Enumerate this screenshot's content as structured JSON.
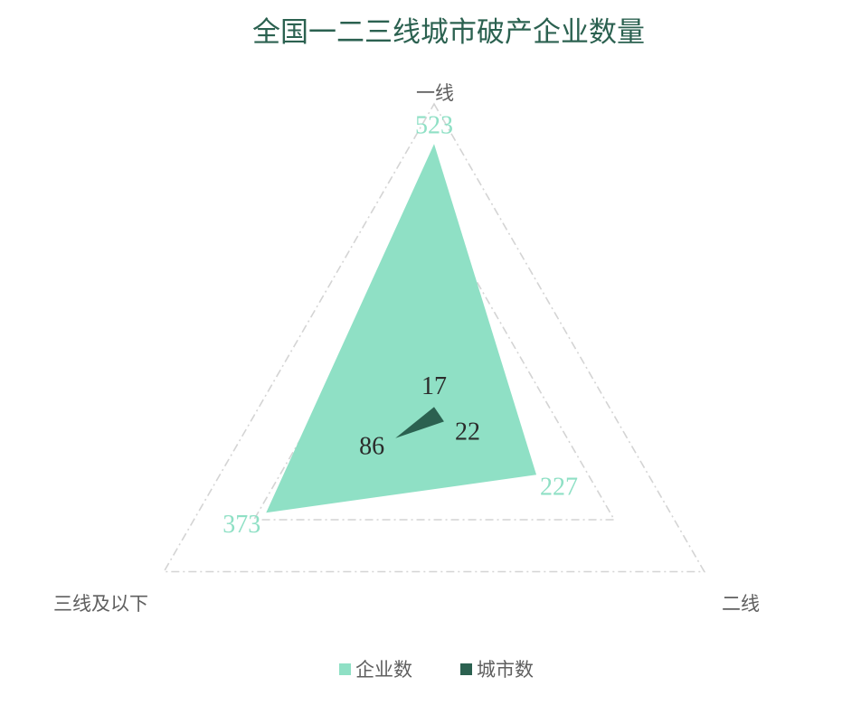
{
  "chart_data": {
    "type": "radar",
    "title": "全国一二三线城市破产企业数量",
    "axes": [
      "一线",
      "二线",
      "三线及以下"
    ],
    "series": [
      {
        "name": "企业数",
        "values": [
          523,
          227,
          373
        ],
        "color": "#8fe0c5"
      },
      {
        "name": "城市数",
        "values": [
          17,
          22,
          86
        ],
        "color": "#2b6150"
      }
    ],
    "rmax": 600,
    "grid_levels": 3,
    "legend_position": "bottom"
  },
  "colors": {
    "title": "#2b6150",
    "axis_label": "#5f5f5f",
    "grid": "#d4d4d4"
  }
}
